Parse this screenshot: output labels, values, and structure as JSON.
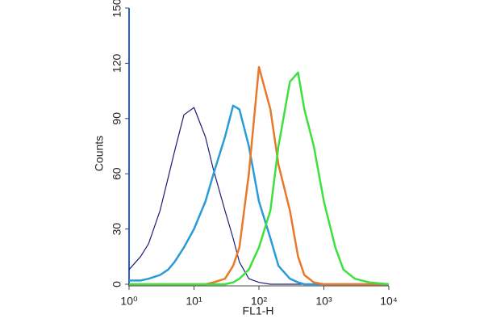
{
  "chart_data": {
    "type": "line",
    "y_label": "Counts",
    "x_label": "FL1-H",
    "x_log": true,
    "x": [
      1,
      1.5,
      2,
      3,
      4,
      5,
      7,
      10,
      15,
      20,
      30,
      40,
      50,
      70,
      100,
      150,
      200,
      300,
      400,
      500,
      700,
      1000,
      1500,
      2000,
      3000,
      5000,
      10000
    ],
    "series": [
      {
        "color": "#1c1c78",
        "values": [
          8,
          15,
          22,
          40,
          58,
          72,
          92,
          96,
          80,
          62,
          40,
          25,
          12,
          3,
          1,
          0,
          0,
          0,
          0,
          0,
          0,
          0,
          0,
          0,
          0,
          0,
          0
        ]
      },
      {
        "color": "#2a9bd8",
        "values": [
          2,
          2,
          3,
          5,
          8,
          12,
          20,
          30,
          45,
          60,
          80,
          97,
          95,
          75,
          45,
          25,
          10,
          3,
          1,
          0,
          0,
          0,
          0,
          0,
          0,
          0,
          0
        ]
      },
      {
        "color": "#e8782a",
        "values": [
          0,
          0,
          0,
          0,
          0,
          0,
          0,
          0,
          0,
          1,
          3,
          10,
          20,
          60,
          118,
          95,
          65,
          40,
          15,
          5,
          1,
          0,
          0,
          0,
          0,
          0,
          0
        ]
      },
      {
        "color": "#3ee03e",
        "values": [
          0,
          0,
          0,
          0,
          0,
          0,
          0,
          0,
          0,
          0,
          0,
          1,
          3,
          8,
          20,
          40,
          75,
          110,
          115,
          95,
          75,
          45,
          20,
          8,
          3,
          1,
          0
        ]
      }
    ],
    "xlim": [
      1,
      10000
    ],
    "xticks": [
      {
        "value": 1,
        "label": "10⁰"
      },
      {
        "value": 10,
        "label": "10¹"
      },
      {
        "value": 100,
        "label": "10²"
      },
      {
        "value": 1000,
        "label": "10³"
      },
      {
        "value": 10000,
        "label": "10⁴"
      }
    ],
    "ylim": [
      0,
      150
    ],
    "yticks": [
      0,
      30,
      60,
      90,
      120,
      150
    ]
  }
}
